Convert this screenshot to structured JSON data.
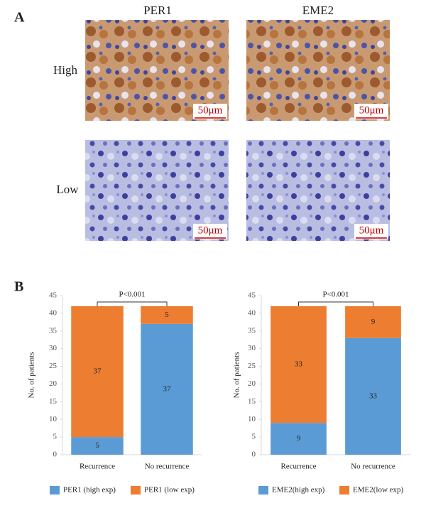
{
  "panel_labels": [
    "A",
    "B"
  ],
  "images": {
    "columns": [
      "PER1",
      "EME2"
    ],
    "rows": [
      "High",
      "Low"
    ],
    "scale_bar": "50μm"
  },
  "chart_data": [
    {
      "type": "bar",
      "stacked": true,
      "ylabel": "No. of patients",
      "annotation": "P<0.001",
      "categories": [
        "Recurrence",
        "No recurrence"
      ],
      "series": [
        {
          "name": "PER1 (high exp)",
          "color": "#5b9bd5",
          "values": [
            5,
            37
          ]
        },
        {
          "name": "PER1 (low exp)",
          "color": "#ed7d31",
          "values": [
            37,
            5
          ]
        }
      ],
      "ylim": [
        0,
        45
      ],
      "yticks": [
        0,
        5,
        10,
        15,
        20,
        25,
        30,
        35,
        40,
        45
      ],
      "legend": "bottom"
    },
    {
      "type": "bar",
      "stacked": true,
      "ylabel": "No. of patients",
      "annotation": "P<0.001",
      "categories": [
        "Recurrence",
        "No recurrence"
      ],
      "series": [
        {
          "name": "EME2(high exp)",
          "color": "#5b9bd5",
          "values": [
            9,
            33
          ]
        },
        {
          "name": "EME2(low exp)",
          "color": "#ed7d31",
          "values": [
            33,
            9
          ]
        }
      ],
      "ylim": [
        0,
        45
      ],
      "yticks": [
        0,
        5,
        10,
        15,
        20,
        25,
        30,
        35,
        40,
        45
      ],
      "legend": "bottom"
    }
  ]
}
